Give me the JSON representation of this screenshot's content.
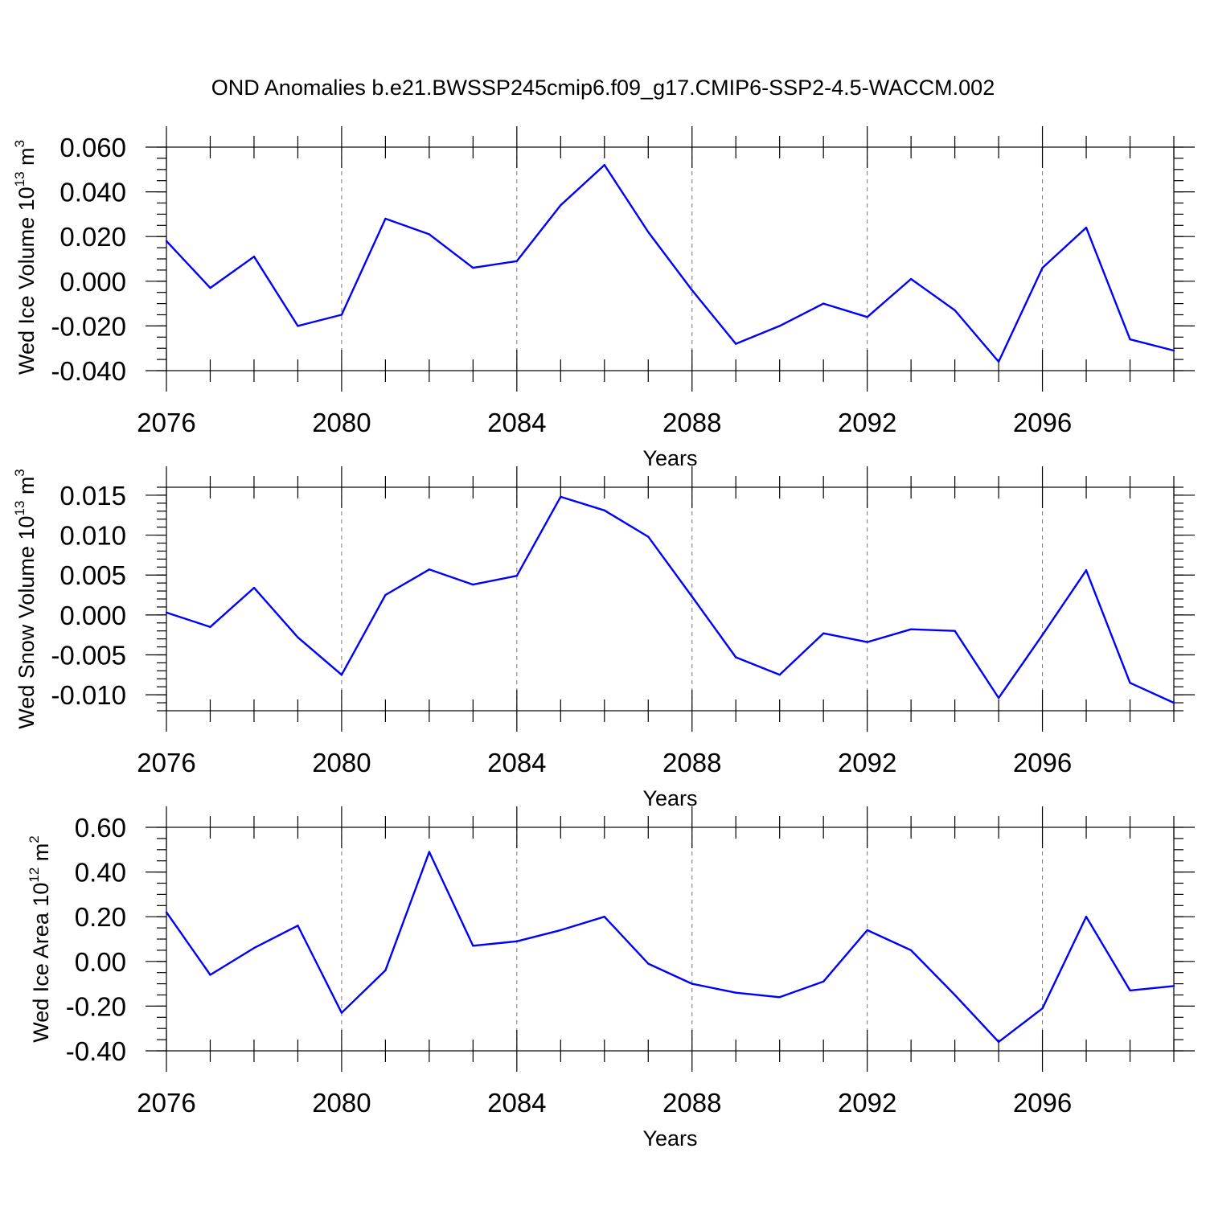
{
  "title": "OND Anomalies b.e21.BWSSP245cmip6.f09_g17.CMIP6-SSP2-4.5-WACCM.002",
  "chart_data": [
    {
      "type": "line",
      "ylabel": {
        "main": "Wed Ice Volume 10",
        "exp": "13",
        "unit": " m",
        "unit_exp": "3"
      },
      "xlabel": "Years",
      "xlim": [
        2076,
        2099
      ],
      "ylim": [
        -0.04,
        0.06
      ],
      "yticks": [
        0.06,
        0.04,
        0.02,
        0.0,
        -0.02,
        -0.04
      ],
      "yticklabels": [
        "0.060",
        "0.040",
        "0.020",
        "0.000",
        "-0.020",
        "-0.040"
      ],
      "yminor": 0.005,
      "xticks": [
        2076,
        2080,
        2084,
        2088,
        2092,
        2096
      ],
      "xticklabels": [
        "2076",
        "2080",
        "2084",
        "2088",
        "2092",
        "2096"
      ],
      "grid": "vertical dashed at major x ticks",
      "x": [
        2076,
        2077,
        2078,
        2079,
        2080,
        2081,
        2082,
        2083,
        2084,
        2085,
        2086,
        2087,
        2088,
        2089,
        2090,
        2091,
        2092,
        2093,
        2094,
        2095,
        2096,
        2097,
        2098,
        2099
      ],
      "y": [
        0.018,
        -0.003,
        0.011,
        -0.02,
        -0.015,
        0.028,
        0.021,
        0.006,
        0.009,
        0.034,
        0.052,
        0.022,
        -0.004,
        -0.028,
        -0.02,
        -0.01,
        -0.016,
        0.001,
        -0.013,
        -0.036,
        0.006,
        0.024,
        -0.026,
        -0.031
      ],
      "color": "#0000ff"
    },
    {
      "type": "line",
      "ylabel": {
        "main": "Wed Snow Volume 10",
        "exp": "13",
        "unit": " m",
        "unit_exp": "3"
      },
      "xlabel": "Years",
      "xlim": [
        2076,
        2099
      ],
      "ylim": [
        -0.012,
        0.016
      ],
      "yticks": [
        0.015,
        0.01,
        0.005,
        0.0,
        -0.005,
        -0.01
      ],
      "yticklabels": [
        "0.015",
        "0.010",
        "0.005",
        "0.000",
        "-0.005",
        "-0.010"
      ],
      "yminor": 0.001,
      "xticks": [
        2076,
        2080,
        2084,
        2088,
        2092,
        2096
      ],
      "xticklabels": [
        "2076",
        "2080",
        "2084",
        "2088",
        "2092",
        "2096"
      ],
      "grid": "vertical dashed at major x ticks",
      "x": [
        2076,
        2077,
        2078,
        2079,
        2080,
        2081,
        2082,
        2083,
        2084,
        2085,
        2086,
        2087,
        2088,
        2089,
        2090,
        2091,
        2092,
        2093,
        2094,
        2095,
        2096,
        2097,
        2098,
        2099
      ],
      "y": [
        0.0003,
        -0.0015,
        0.0034,
        -0.0028,
        -0.0075,
        0.0025,
        0.0057,
        0.0038,
        0.0049,
        0.0148,
        0.0131,
        0.0098,
        0.0023,
        -0.0053,
        -0.0075,
        -0.0023,
        -0.0034,
        -0.0018,
        -0.002,
        -0.0104,
        -0.0025,
        0.0056,
        -0.0085,
        -0.011
      ],
      "color": "#0000ff"
    },
    {
      "type": "line",
      "ylabel": {
        "main": "Wed Ice Area 10",
        "exp": "12",
        "unit": " m",
        "unit_exp": "2"
      },
      "xlabel": "Years",
      "xlim": [
        2076,
        2099
      ],
      "ylim": [
        -0.4,
        0.6
      ],
      "yticks": [
        0.6,
        0.4,
        0.2,
        0.0,
        -0.2,
        -0.4
      ],
      "yticklabels": [
        "0.60",
        "0.40",
        "0.20",
        "0.00",
        "-0.20",
        "-0.40"
      ],
      "yminor": 0.05,
      "xticks": [
        2076,
        2080,
        2084,
        2088,
        2092,
        2096
      ],
      "xticklabels": [
        "2076",
        "2080",
        "2084",
        "2088",
        "2092",
        "2096"
      ],
      "grid": "vertical dashed at major x ticks",
      "x": [
        2076,
        2077,
        2078,
        2079,
        2080,
        2081,
        2082,
        2083,
        2084,
        2085,
        2086,
        2087,
        2088,
        2089,
        2090,
        2091,
        2092,
        2093,
        2094,
        2095,
        2096,
        2097,
        2098,
        2099
      ],
      "y": [
        0.22,
        -0.06,
        0.06,
        0.16,
        -0.23,
        -0.04,
        0.49,
        0.07,
        0.09,
        0.14,
        0.2,
        -0.01,
        -0.1,
        -0.14,
        -0.16,
        -0.09,
        0.14,
        0.05,
        -0.15,
        -0.36,
        -0.21,
        0.2,
        -0.13,
        -0.11
      ],
      "color": "#0000ff"
    }
  ]
}
